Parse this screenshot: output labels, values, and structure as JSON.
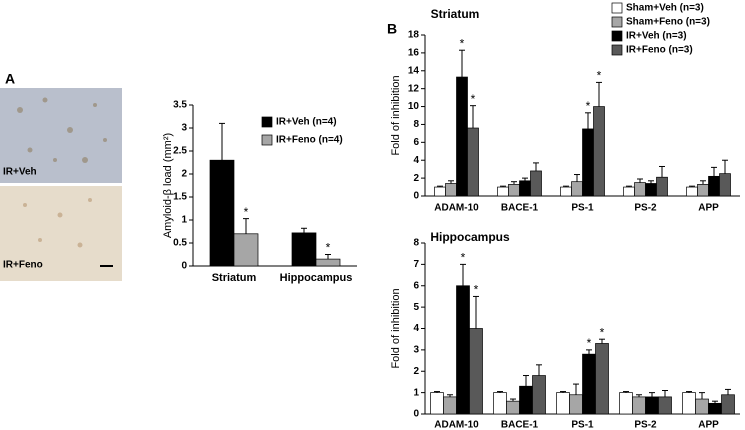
{
  "micrographs": [
    {
      "label": "IR+Veh"
    },
    {
      "label": "IR+Feno"
    }
  ],
  "chart_data": [
    {
      "type": "bar",
      "panel_label": "A",
      "y_label": "Amyloid-β load (mm²)",
      "categories": [
        "Striatum",
        "Hippocampus"
      ],
      "series": [
        {
          "name": "IR+Veh (n=4)",
          "color": "#000000",
          "values": [
            2.3,
            0.72
          ],
          "errors": [
            0.8,
            0.1
          ],
          "significance": [
            null,
            null
          ]
        },
        {
          "name": "IR+Feno (n=4)",
          "color": "#a6a6a6",
          "values": [
            0.7,
            0.15
          ],
          "errors": [
            0.33,
            0.1
          ],
          "significance": [
            "*",
            "*"
          ]
        }
      ],
      "ylim": [
        0,
        3.5
      ],
      "yticks": [
        0,
        0.5,
        1,
        1.5,
        2,
        2.5,
        3,
        3.5
      ],
      "legend": "top-right"
    },
    {
      "type": "bar",
      "panel_label": "B",
      "title": "Striatum",
      "y_label": "Fold of inhibition",
      "categories": [
        "ADAM-10",
        "BACE-1",
        "PS-1",
        "PS-2",
        "APP"
      ],
      "series": [
        {
          "name": "Sham+Veh (n=3)",
          "color": "#ffffff",
          "values": [
            1,
            1,
            1,
            1,
            1
          ],
          "errors": [
            0.1,
            0.1,
            0.1,
            0.1,
            0.1
          ],
          "significance": [
            null,
            null,
            null,
            null,
            null
          ]
        },
        {
          "name": "Sham+Feno (n=3)",
          "color": "#a6a6a6",
          "values": [
            1.4,
            1.3,
            1.6,
            1.5,
            1.3
          ],
          "errors": [
            0.3,
            0.3,
            0.8,
            0.4,
            0.4
          ],
          "significance": [
            null,
            null,
            null,
            null,
            null
          ]
        },
        {
          "name": "IR+Veh (n=3)",
          "color": "#000000",
          "values": [
            13.3,
            1.7,
            7.5,
            1.4,
            2.2
          ],
          "errors": [
            3,
            0.3,
            1.8,
            0.3,
            1
          ],
          "significance": [
            "*",
            null,
            "*",
            null,
            null
          ]
        },
        {
          "name": "IR+Feno (n=3)",
          "color": "#595959",
          "values": [
            7.6,
            2.8,
            10,
            2.1,
            2.5
          ],
          "errors": [
            2.5,
            0.9,
            2.7,
            1.2,
            1.5
          ],
          "significance": [
            "*",
            null,
            "*",
            null,
            null
          ]
        }
      ],
      "ylim": [
        0,
        18
      ],
      "yticks": [
        0,
        2,
        4,
        6,
        8,
        10,
        12,
        14,
        16,
        18
      ],
      "legend": "top-right"
    },
    {
      "type": "bar",
      "title": "Hippocampus",
      "y_label": "Fold of inhibition",
      "categories": [
        "ADAM-10",
        "BACE-1",
        "PS-1",
        "PS-2",
        "APP"
      ],
      "series": [
        {
          "color": "#ffffff",
          "values": [
            1,
            1,
            1,
            1,
            1
          ],
          "errors": [
            0.05,
            0.05,
            0.05,
            0.05,
            0.05
          ],
          "significance": [
            null,
            null,
            null,
            null,
            null
          ]
        },
        {
          "color": "#a6a6a6",
          "values": [
            0.8,
            0.6,
            0.9,
            0.8,
            0.7
          ],
          "errors": [
            0.1,
            0.1,
            0.5,
            0.1,
            0.3
          ],
          "significance": [
            null,
            null,
            null,
            null,
            null
          ]
        },
        {
          "color": "#000000",
          "values": [
            6,
            1.3,
            2.8,
            0.8,
            0.5
          ],
          "errors": [
            1,
            0.5,
            0.2,
            0.2,
            0.1
          ],
          "significance": [
            "*",
            null,
            "*",
            null,
            null
          ]
        },
        {
          "color": "#595959",
          "values": [
            4,
            1.8,
            3.3,
            0.8,
            0.9
          ],
          "errors": [
            1.5,
            0.5,
            0.2,
            0.3,
            0.25
          ],
          "significance": [
            "*",
            null,
            "*",
            null,
            null
          ]
        }
      ],
      "ylim": [
        0,
        8
      ],
      "yticks": [
        0,
        1,
        2,
        3,
        4,
        5,
        6,
        7,
        8
      ]
    }
  ]
}
